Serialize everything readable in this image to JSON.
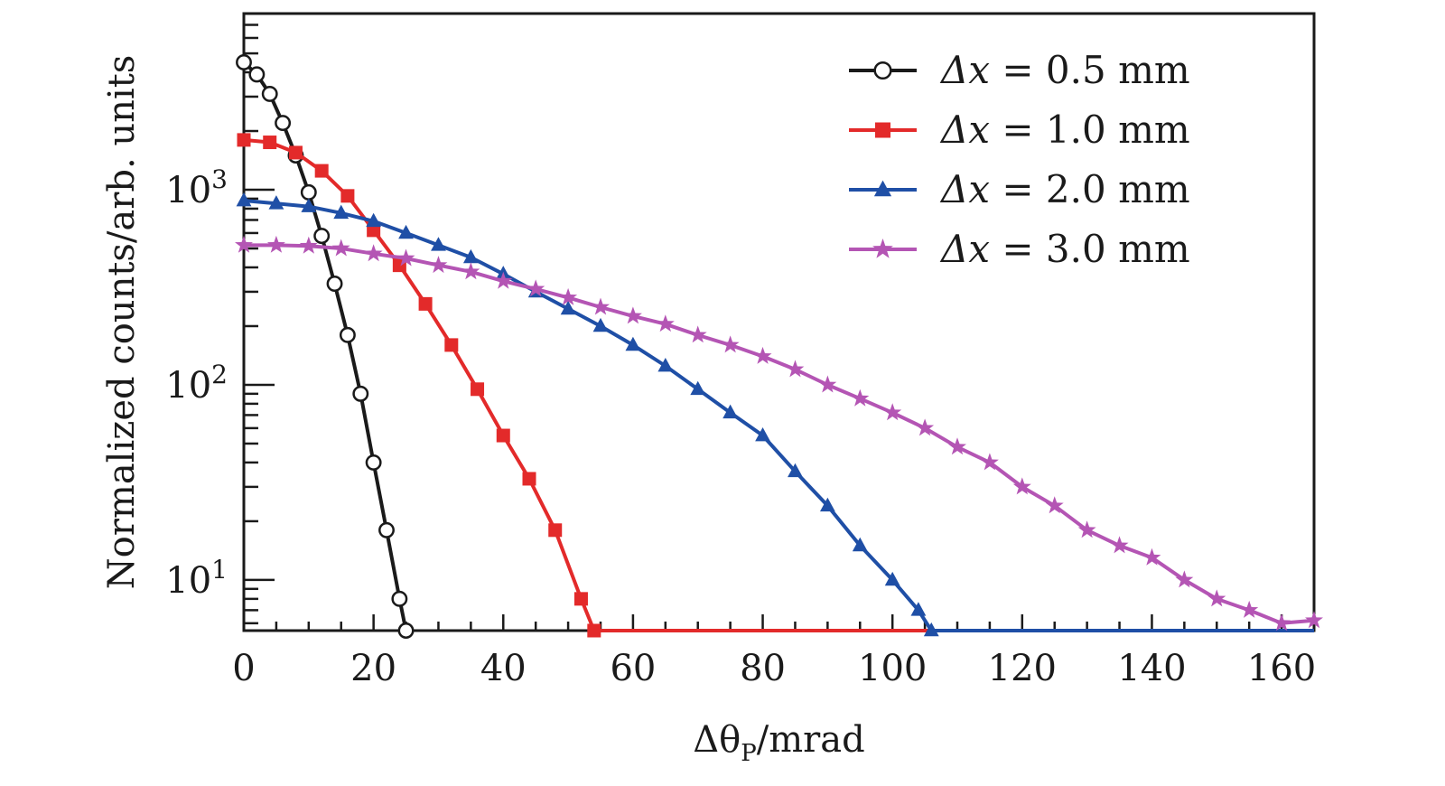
{
  "chart_data": {
    "type": "line",
    "title": "",
    "xlabel": {
      "prefix": "Δθ",
      "subscript": "P",
      "suffix": "/mrad"
    },
    "ylabel": "Normalized counts/arb. units",
    "xlim": [
      0,
      165
    ],
    "ylim": [
      5.5,
      8000
    ],
    "yscale": "log",
    "x_ticks": [
      "0",
      "20",
      "40",
      "60",
      "80",
      "100",
      "120",
      "140",
      "160"
    ],
    "y_ticks": [
      {
        "base": "10",
        "exp": "1",
        "value": 10
      },
      {
        "base": "10",
        "exp": "2",
        "value": 100
      },
      {
        "base": "10",
        "exp": "3",
        "value": 1000
      }
    ],
    "grid": false,
    "legend_position": "top-right",
    "series": [
      {
        "name": "Δx = 0.5 mm",
        "label_var": "Δx",
        "label_value": "0.5",
        "label_unit": "mm",
        "color": "#1a1a1a",
        "marker": "circle",
        "x": [
          0,
          2,
          4,
          6,
          8,
          10,
          12,
          14,
          16,
          18,
          20,
          22,
          24,
          25
        ],
        "y": [
          4500,
          3900,
          3100,
          2200,
          1500,
          970,
          580,
          330,
          180,
          90,
          40,
          18,
          8,
          5.5
        ]
      },
      {
        "name": "Δx = 1.0 mm",
        "label_var": "Δx",
        "label_value": "1.0",
        "label_unit": "mm",
        "color": "#e32a2a",
        "marker": "square",
        "x": [
          0,
          4,
          8,
          12,
          16,
          20,
          24,
          28,
          32,
          36,
          40,
          44,
          48,
          52,
          54,
          56,
          165
        ],
        "y": [
          1800,
          1750,
          1550,
          1250,
          930,
          620,
          410,
          260,
          160,
          95,
          55,
          33,
          18,
          8,
          5.5,
          5.5,
          5.5
        ]
      },
      {
        "name": "Δx = 2.0 mm",
        "label_var": "Δx",
        "label_value": "2.0",
        "label_unit": "mm",
        "color": "#1f4fa6",
        "marker": "triangle",
        "x": [
          0,
          5,
          10,
          15,
          20,
          25,
          30,
          35,
          40,
          45,
          50,
          55,
          60,
          65,
          70,
          75,
          80,
          85,
          90,
          95,
          100,
          104,
          106,
          165
        ],
        "y": [
          880,
          850,
          820,
          760,
          690,
          600,
          520,
          450,
          370,
          300,
          245,
          200,
          160,
          125,
          95,
          72,
          55,
          36,
          24,
          15,
          10,
          7,
          5.5,
          5.5
        ]
      },
      {
        "name": "Δx = 3.0 mm",
        "label_var": "Δx",
        "label_value": "3.0",
        "label_unit": "mm",
        "color": "#b455b4",
        "marker": "star",
        "x": [
          0,
          5,
          10,
          15,
          20,
          25,
          30,
          35,
          40,
          45,
          50,
          55,
          60,
          65,
          70,
          75,
          80,
          85,
          90,
          95,
          100,
          105,
          110,
          115,
          120,
          125,
          130,
          135,
          140,
          145,
          150,
          155,
          160,
          165
        ],
        "y": [
          520,
          520,
          515,
          500,
          470,
          445,
          410,
          380,
          340,
          310,
          280,
          250,
          225,
          205,
          180,
          160,
          140,
          120,
          100,
          85,
          72,
          60,
          48,
          40,
          30,
          24,
          18,
          15,
          13,
          10,
          8,
          7,
          6,
          6.2
        ]
      }
    ]
  }
}
